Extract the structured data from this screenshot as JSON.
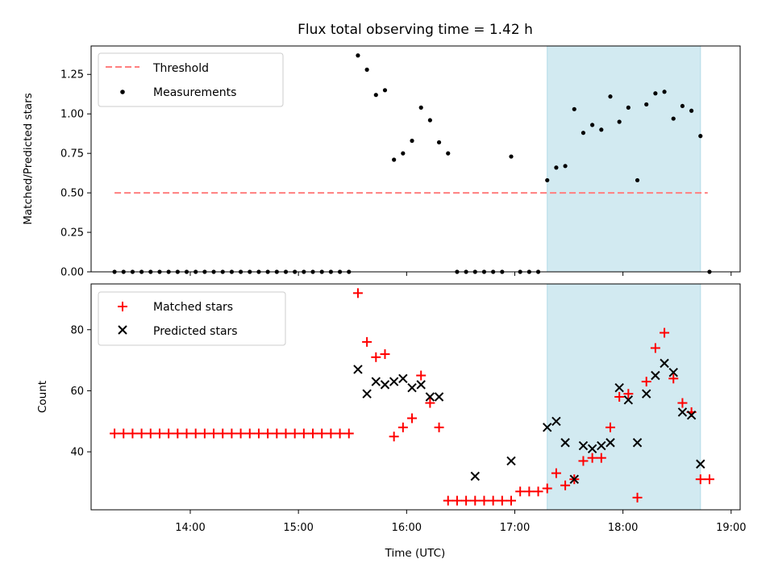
{
  "chart_data": [
    {
      "type": "scatter",
      "title": "Flux total observing time = 1.42 h",
      "xlabel": "",
      "ylabel": "Matched/Predicted stars",
      "ylim": [
        0,
        1.43
      ],
      "yticks": [
        "0.00",
        "0.25",
        "0.50",
        "0.75",
        "1.00",
        "1.25"
      ],
      "ytick_values": [
        0,
        0.25,
        0.5,
        0.75,
        1.0,
        1.25
      ],
      "shaded_span": {
        "start": "17:18",
        "end": "18:43",
        "color": "#add8e6"
      },
      "legend_position": "top-left",
      "threshold": {
        "name": "Threshold",
        "value": 0.5,
        "start": "13:18",
        "end": "18:47",
        "color": "#ff7f7f"
      },
      "series": [
        {
          "name": "Measurements",
          "color": "#000000",
          "x": [
            "13:18",
            "13:23",
            "13:28",
            "13:33",
            "13:38",
            "13:43",
            "13:48",
            "13:53",
            "13:58",
            "14:03",
            "14:08",
            "14:13",
            "14:18",
            "14:23",
            "14:28",
            "14:33",
            "14:38",
            "14:43",
            "14:48",
            "14:53",
            "14:58",
            "15:03",
            "15:08",
            "15:13",
            "15:18",
            "15:23",
            "15:28",
            "15:33",
            "15:38",
            "15:43",
            "15:48",
            "15:53",
            "15:58",
            "16:03",
            "16:08",
            "16:13",
            "16:18",
            "16:23",
            "16:28",
            "16:33",
            "16:38",
            "16:43",
            "16:48",
            "16:53",
            "16:58",
            "17:03",
            "17:08",
            "17:13",
            "17:18",
            "17:23",
            "17:28",
            "17:33",
            "17:38",
            "17:43",
            "17:48",
            "17:53",
            "17:58",
            "18:03",
            "18:08",
            "18:13",
            "18:18",
            "18:23",
            "18:28",
            "18:33",
            "18:38",
            "18:43",
            "18:48"
          ],
          "y": [
            0,
            0,
            0,
            0,
            0,
            0,
            0,
            0,
            0,
            0,
            0,
            0,
            0,
            0,
            0,
            0,
            0,
            0,
            0,
            0,
            0,
            0,
            0,
            0,
            0,
            0,
            0,
            1.37,
            1.28,
            1.12,
            1.15,
            0.71,
            0.75,
            0.83,
            1.04,
            0.96,
            0.82,
            0.75,
            0,
            0,
            0,
            0,
            0,
            0,
            0.73,
            0,
            0,
            0,
            0.58,
            0.66,
            0.67,
            1.03,
            0.88,
            0.93,
            0.9,
            1.11,
            0.95,
            1.04,
            0.58,
            1.06,
            1.13,
            1.14,
            0.97,
            1.05,
            1.02,
            0.86,
            0
          ]
        }
      ]
    },
    {
      "type": "scatter",
      "title": "",
      "xlabel": "Time (UTC)",
      "ylabel": "Count",
      "ylim": [
        21,
        95
      ],
      "yticks": [
        "40",
        "60",
        "80"
      ],
      "ytick_values": [
        40,
        60,
        80
      ],
      "xticks": [
        "14:00",
        "15:00",
        "16:00",
        "17:00",
        "18:00",
        "19:00"
      ],
      "xlim": [
        "13:05",
        "19:05"
      ],
      "shaded_span": {
        "start": "17:18",
        "end": "18:43",
        "color": "#add8e6"
      },
      "legend_position": "top-left",
      "series": [
        {
          "name": "Matched stars",
          "marker": "plus",
          "color": "#ff0000",
          "x": [
            "13:18",
            "13:23",
            "13:28",
            "13:33",
            "13:38",
            "13:43",
            "13:48",
            "13:53",
            "13:58",
            "14:03",
            "14:08",
            "14:13",
            "14:18",
            "14:23",
            "14:28",
            "14:33",
            "14:38",
            "14:43",
            "14:48",
            "14:53",
            "14:58",
            "15:03",
            "15:08",
            "15:13",
            "15:18",
            "15:23",
            "15:28",
            "15:33",
            "15:38",
            "15:43",
            "15:48",
            "15:53",
            "15:58",
            "16:03",
            "16:08",
            "16:13",
            "16:18",
            "16:23",
            "16:28",
            "16:33",
            "16:38",
            "16:43",
            "16:48",
            "16:53",
            "16:58",
            "17:03",
            "17:08",
            "17:13",
            "17:18",
            "17:23",
            "17:28",
            "17:33",
            "17:38",
            "17:43",
            "17:48",
            "17:53",
            "17:58",
            "18:03",
            "18:08",
            "18:13",
            "18:18",
            "18:23",
            "18:28",
            "18:33",
            "18:38",
            "18:43",
            "18:48"
          ],
          "y": [
            46,
            46,
            46,
            46,
            46,
            46,
            46,
            46,
            46,
            46,
            46,
            46,
            46,
            46,
            46,
            46,
            46,
            46,
            46,
            46,
            46,
            46,
            46,
            46,
            46,
            46,
            46,
            92,
            76,
            71,
            72,
            45,
            48,
            51,
            65,
            56,
            48,
            24,
            24,
            24,
            24,
            24,
            24,
            24,
            24,
            27,
            27,
            27,
            28,
            33,
            29,
            31,
            37,
            38,
            38,
            48,
            58,
            59,
            25,
            63,
            74,
            79,
            64,
            56,
            53,
            31,
            31
          ]
        },
        {
          "name": "Predicted stars",
          "marker": "x",
          "color": "#000000",
          "x": [
            "15:33",
            "15:38",
            "15:43",
            "15:48",
            "15:53",
            "15:58",
            "16:03",
            "16:08",
            "16:13",
            "16:18",
            "16:38",
            "16:58",
            "17:18",
            "17:23",
            "17:28",
            "17:33",
            "17:38",
            "17:43",
            "17:48",
            "17:53",
            "17:58",
            "18:03",
            "18:08",
            "18:13",
            "18:18",
            "18:23",
            "18:28",
            "18:33",
            "18:38",
            "18:43"
          ],
          "y": [
            67,
            59,
            63,
            62,
            63,
            64,
            61,
            62,
            58,
            58,
            32,
            37,
            48,
            50,
            43,
            31,
            42,
            41,
            42,
            43,
            61,
            57,
            43,
            59,
            65,
            69,
            66,
            53,
            52,
            36
          ]
        }
      ]
    }
  ]
}
